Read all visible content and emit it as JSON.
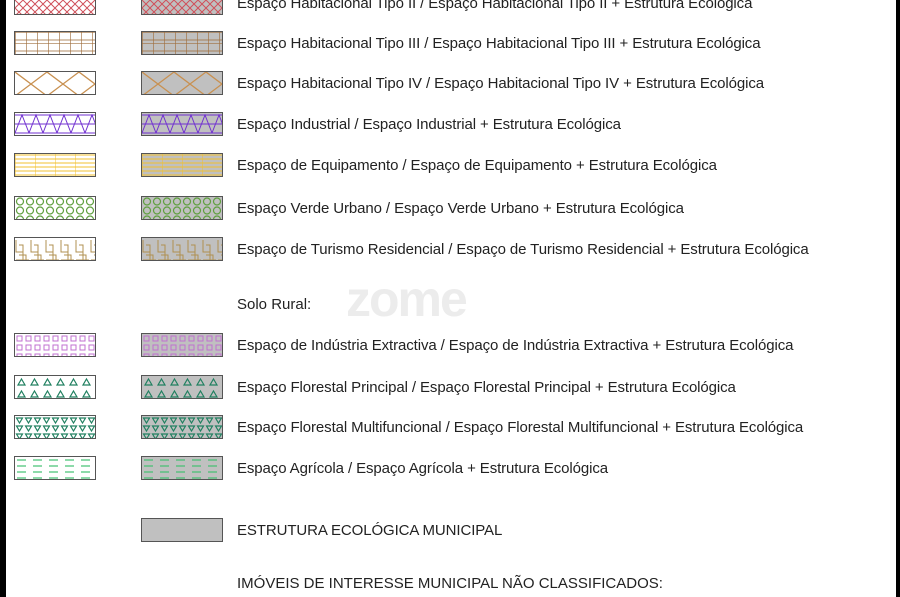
{
  "legend": {
    "urban_rows": [
      {
        "label": "Espaço Habitacional Tipo II  /  Espaço Habitacional Tipo II + Estrutura Ecológica",
        "pattern": "crosshatch",
        "color": "#d0505a"
      },
      {
        "label": "Espaço Habitacional Tipo III  /  Espaço Habitacional Tipo III + Estrutura Ecológica",
        "pattern": "grid",
        "color": "#a07040"
      },
      {
        "label": "Espaço Habitacional Tipo IV  /  Espaço Habitacional Tipo IV + Estrutura Ecológica",
        "pattern": "diagonal-lattice",
        "color": "#c89050"
      },
      {
        "label": "Espaço Industrial  /  Espaço Industrial + Estrutura Ecológica",
        "pattern": "triangles",
        "color": "#7030d0"
      },
      {
        "label": "Espaço de Equipamento  /  Espaço de Equipamento + Estrutura Ecológica",
        "pattern": "lines-grid",
        "color": "#f0c030"
      },
      {
        "label": "Espaço Verde Urbano  /  Espaço Verde Urbano + Estrutura Ecológica",
        "pattern": "hexagons",
        "color": "#60a040"
      },
      {
        "label": "Espaço de Turismo Residencial / Espaço de Turismo Residencial + Estrutura Ecológica",
        "pattern": "greek-key",
        "color": "#b09050"
      }
    ],
    "rural_heading": "Solo Rural:",
    "rural_rows": [
      {
        "label": "Espaço de Indústria Extractiva  /  Espaço de Indústria Extractiva + Estrutura Ecológica",
        "pattern": "squares",
        "color": "#c070d0"
      },
      {
        "label": "Espaço Florestal Principal  /  Espaço Florestal Principal + Estrutura Ecológica",
        "pattern": "triangles-up",
        "color": "#208060"
      },
      {
        "label": "Espaço Florestal Multifuncional  /  Espaço Florestal Multifuncional + Estrutura Ecológica",
        "pattern": "triangles-down",
        "color": "#208060"
      },
      {
        "label": "Espaço Agrícola  /  Espaço Agrícola + Estrutura Ecológica",
        "pattern": "dashes",
        "color": "#40c070"
      }
    ],
    "eco_label": "ESTRUTURA ECOLÓGICA MUNICIPAL",
    "imoveis_heading": "IMÓVEIS DE INTERESSE MUNICIPAL NÃO CLASSIFICADOS:",
    "eco_fill": "#c0c0c0",
    "watermark": "zome"
  }
}
